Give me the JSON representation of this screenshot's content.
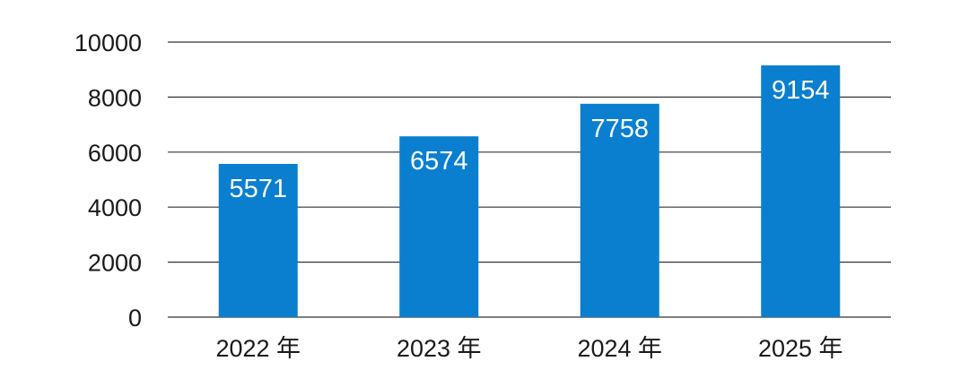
{
  "chart_data": {
    "type": "bar",
    "title": "",
    "xlabel": "",
    "ylabel": "",
    "categories": [
      "2022 年",
      "2023 年",
      "2024 年",
      "2025 年"
    ],
    "values": [
      5571,
      6574,
      7758,
      9154
    ],
    "data_labels": [
      "5571",
      "6574",
      "7758",
      "9154"
    ],
    "ylim": [
      0,
      10000
    ],
    "yticks": [
      0,
      2000,
      4000,
      6000,
      8000,
      10000
    ],
    "ytick_labels": [
      "0",
      "2000",
      "4000",
      "6000",
      "8000",
      "10000"
    ],
    "grid": true,
    "legend": "none",
    "bar_color": "#0a7fd0",
    "grid_color": "#333333"
  }
}
